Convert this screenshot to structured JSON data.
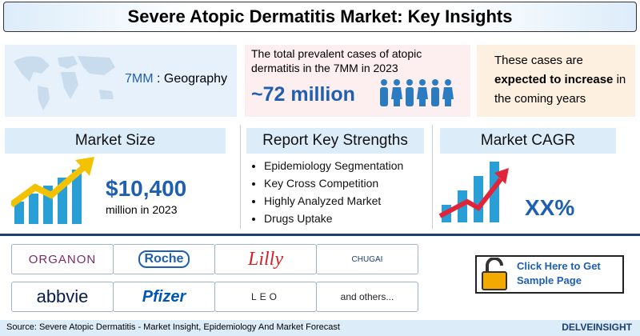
{
  "header": {
    "title": "Severe Atopic Dermatitis Market: Key Insights"
  },
  "geography": {
    "value": "7MM",
    "label": ": Geography"
  },
  "prevalence": {
    "text": "The total prevalent cases of atopic dermatitis in the 7MM in 2023",
    "value": "~72 million"
  },
  "trend": {
    "before": "These cases are",
    "emphasis": "expected to increase",
    "after": "in the coming years"
  },
  "market_size": {
    "heading": "Market Size",
    "value": "$10,400",
    "note": "million in 2023"
  },
  "strengths": {
    "heading": "Report Key Strengths",
    "items": [
      "Epidemiology Segmentation",
      "Key Cross Competition",
      "Highly Analyzed Market",
      "Drugs Uptake"
    ]
  },
  "cagr": {
    "heading": "Market CAGR",
    "value": "XX%"
  },
  "companies": [
    "ORGANON",
    "Roche",
    "Lilly",
    "CHUGAI",
    "abbvie",
    "Pfizer",
    "LEO",
    "and others..."
  ],
  "cta": {
    "text": "Click Here to Get Sample Page"
  },
  "footer": {
    "source": "Source: Severe Atopic Dermatitis - Market Insight, Epidemiology And Market Forecast",
    "brand": "DELVEINSIGHT"
  }
}
